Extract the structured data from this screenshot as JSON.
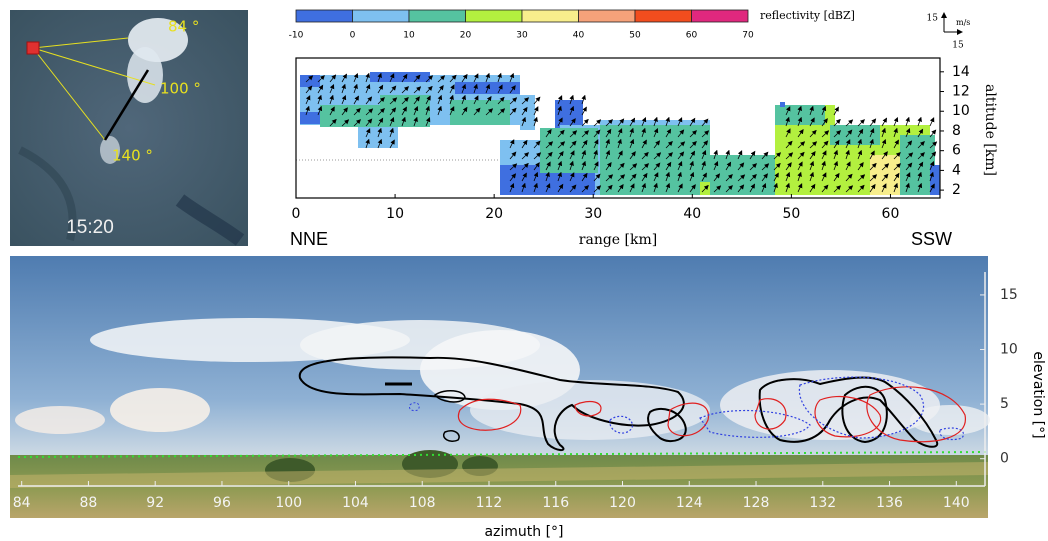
{
  "satellite": {
    "angle_labels": [
      "84 °",
      "100 °",
      "140 °"
    ],
    "time": "15:20"
  },
  "chart_data": [
    {
      "type": "colorbar",
      "label": "reflectivity [dBZ]",
      "ticks": [
        -10,
        0,
        10,
        20,
        30,
        40,
        50,
        60,
        70
      ],
      "colors": [
        "#3f6fe0",
        "#7ec0f0",
        "#55c3a0",
        "#b3f03f",
        "#f8ee8c",
        "#f6a27a",
        "#f24d1e",
        "#e0287e"
      ]
    },
    {
      "type": "vector-scale",
      "value": 15,
      "unit": "m/s"
    },
    {
      "type": "cross-section",
      "xlabel": "range [km]",
      "ylabel": "altitude [km]",
      "left_label": "NNE",
      "right_label": "SSW",
      "xlim": [
        0,
        65
      ],
      "xticks": [
        0,
        10,
        20,
        30,
        40,
        50,
        60
      ],
      "ylim": [
        1.2,
        15.4
      ],
      "yticks": [
        2,
        4,
        6,
        8,
        10,
        12,
        14
      ]
    },
    {
      "type": "panorama",
      "xlabel": "azimuth [°]",
      "ylabel": "elevation [°]",
      "xlim": [
        83.3,
        141.9
      ],
      "xticks": [
        84,
        88,
        92,
        96,
        100,
        104,
        108,
        112,
        116,
        120,
        124,
        128,
        132,
        136,
        140
      ],
      "ylim": [
        -2.5,
        17.1
      ],
      "yticks": [
        0,
        5,
        10,
        15
      ]
    }
  ]
}
